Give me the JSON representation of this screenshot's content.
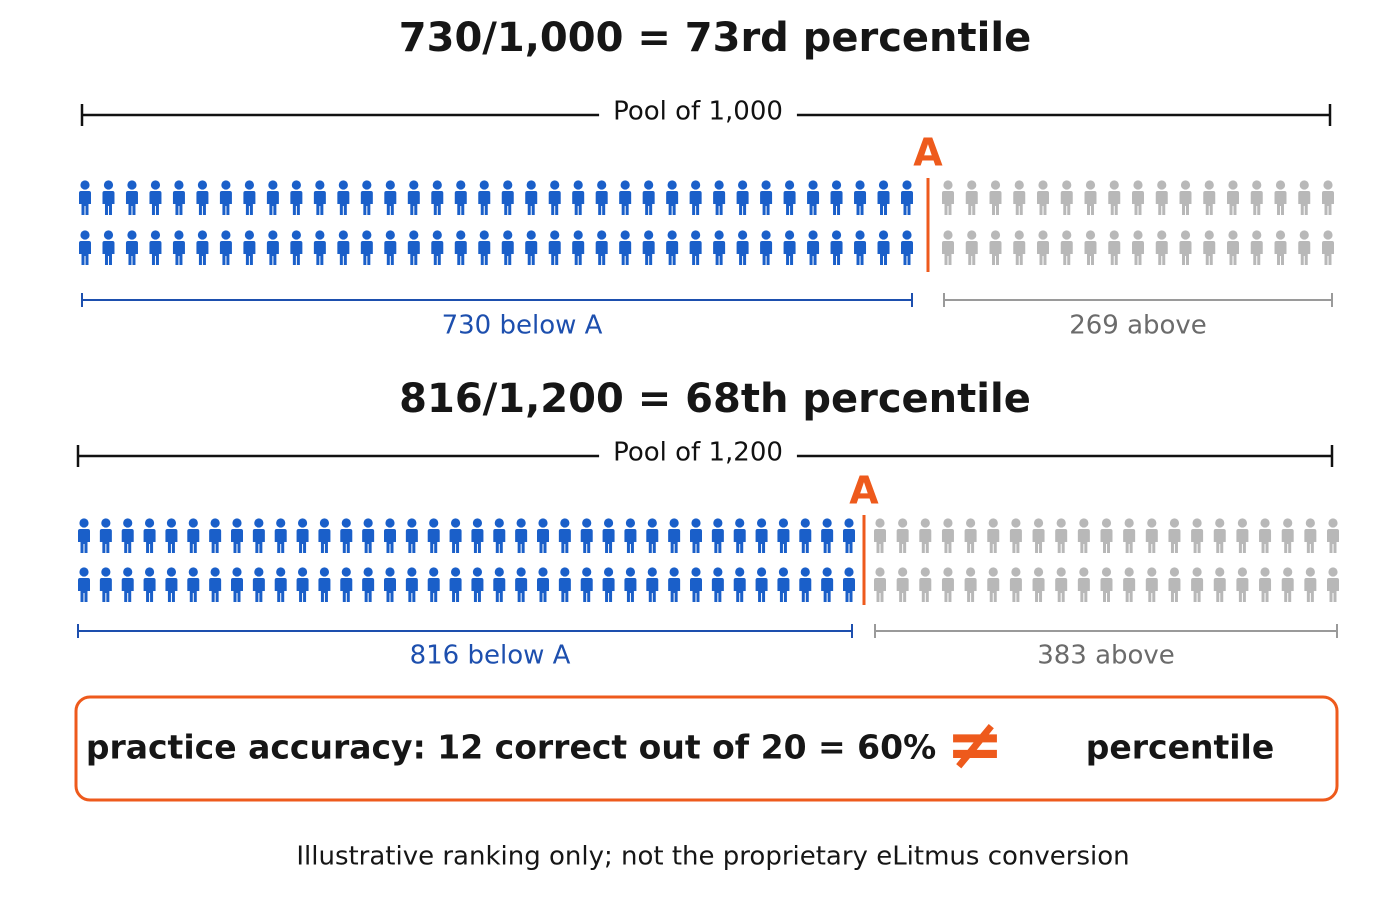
{
  "panels": [
    {
      "title": "730/1,000 = 73rd percentile",
      "pool_label": "Pool of 1,000",
      "marker": "A",
      "below_label": "730 below A",
      "above_label": "269 above"
    },
    {
      "title": "816/1,200 = 68th percentile",
      "pool_label": "Pool of 1,200",
      "marker": "A",
      "below_label": "816 below A",
      "above_label": "383 above"
    }
  ],
  "callout": {
    "left": "practice accuracy: 12 correct out of 20 = 60%",
    "symbol": "≠",
    "right": "percentile"
  },
  "footnote": "Illustrative ranking only; not the proprietary eLitmus conversion"
}
